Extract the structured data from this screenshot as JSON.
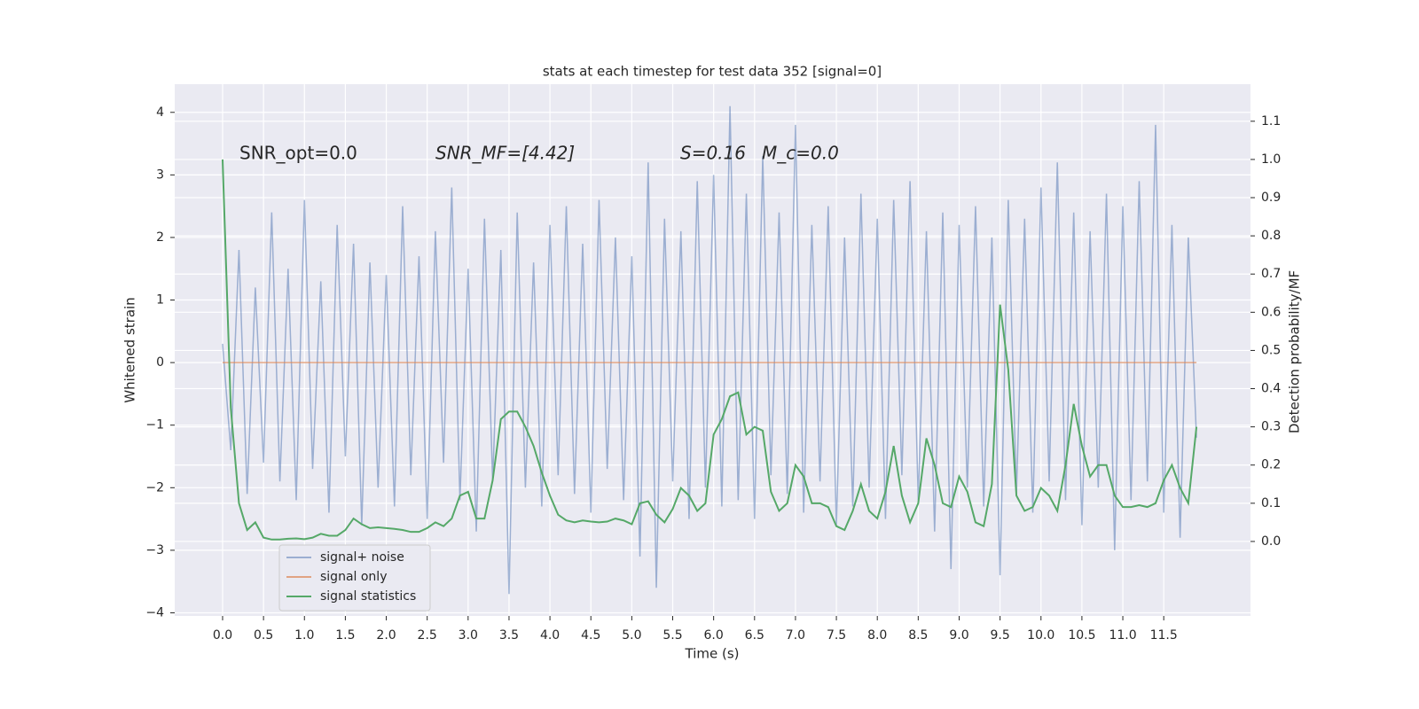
{
  "chart_data": {
    "type": "line",
    "title": "stats at each timestep for test data 352 [signal=0]",
    "x_label": "Time (s)",
    "y_label": "Whitened strain",
    "y2_label": "Detection probability/MF",
    "annotations": [
      "SNR_opt=0.0",
      "SNR_MF=[4.42]",
      "S=0.16",
      "M_c=0.0"
    ],
    "x": [
      0,
      0.1,
      0.2,
      0.3,
      0.4,
      0.5,
      0.6,
      0.7,
      0.8,
      0.9,
      1,
      1.1,
      1.2,
      1.3,
      1.4,
      1.5,
      1.6,
      1.7,
      1.8,
      1.9,
      2,
      2.1,
      2.2,
      2.3,
      2.4,
      2.5,
      2.6,
      2.7,
      2.8,
      2.9,
      3,
      3.1,
      3.2,
      3.3,
      3.4,
      3.5,
      3.6,
      3.7,
      3.8,
      3.9,
      4,
      4.1,
      4.2,
      4.3,
      4.4,
      4.5,
      4.6,
      4.7,
      4.8,
      4.9,
      5,
      5.1,
      5.2,
      5.3,
      5.4,
      5.5,
      5.6,
      5.7,
      5.8,
      5.9,
      6,
      6.1,
      6.2,
      6.3,
      6.4,
      6.5,
      6.6,
      6.7,
      6.8,
      6.9,
      7,
      7.1,
      7.2,
      7.3,
      7.4,
      7.5,
      7.6,
      7.7,
      7.8,
      7.9,
      8,
      8.1,
      8.2,
      8.3,
      8.4,
      8.5,
      8.6,
      8.7,
      8.8,
      8.9,
      9,
      9.1,
      9.2,
      9.3,
      9.4,
      9.5,
      9.6,
      9.7,
      9.8,
      9.9,
      10,
      10.1,
      10.2,
      10.3,
      10.4,
      10.5,
      10.6,
      10.7,
      10.8,
      10.9,
      11,
      11.1,
      11.2,
      11.3,
      11.4,
      11.5,
      11.6,
      11.7,
      11.8,
      11.9
    ],
    "series": [
      {
        "name": "signal+ noise",
        "color": "#4c72b0",
        "opacity": 0.5,
        "values": [
          0.3,
          -1.4,
          1.8,
          -2.1,
          1.2,
          -1.6,
          2.4,
          -1.9,
          1.5,
          -2.2,
          2.6,
          -1.7,
          1.3,
          -2.4,
          2.2,
          -1.5,
          1.9,
          -2.6,
          1.6,
          -2.0,
          1.4,
          -2.3,
          2.5,
          -1.8,
          1.7,
          -2.5,
          2.1,
          -1.6,
          2.8,
          -2.2,
          1.5,
          -2.7,
          2.3,
          -1.9,
          1.8,
          -3.7,
          2.4,
          -2.0,
          1.6,
          -2.3,
          2.2,
          -1.8,
          2.5,
          -2.1,
          1.9,
          -2.4,
          2.6,
          -1.7,
          2.0,
          -2.2,
          1.7,
          -3.1,
          3.2,
          -3.6,
          2.3,
          -1.9,
          2.1,
          -2.5,
          2.9,
          -2.0,
          3.0,
          -2.3,
          4.1,
          -2.2,
          2.7,
          -2.5,
          3.3,
          -1.8,
          2.4,
          -2.1,
          3.8,
          -2.4,
          2.2,
          -1.9,
          2.5,
          -2.6,
          2.0,
          -2.3,
          2.7,
          -2.0,
          2.3,
          -2.5,
          2.6,
          -1.8,
          2.9,
          -2.2,
          2.1,
          -2.7,
          2.4,
          -3.3,
          2.2,
          -2.0,
          2.5,
          -2.3,
          2.0,
          -3.4,
          2.6,
          -2.1,
          2.3,
          -2.4,
          2.8,
          -1.9,
          3.2,
          -2.2,
          2.4,
          -2.6,
          2.1,
          -2.0,
          2.7,
          -3.0,
          2.5,
          -2.2,
          2.9,
          -1.9,
          3.8,
          -2.4,
          2.2,
          -2.8,
          2.0,
          -1.2
        ]
      },
      {
        "name": "signal only",
        "color": "#dd8452",
        "opacity": 0.7,
        "values": [
          0,
          0,
          0,
          0,
          0,
          0,
          0,
          0,
          0,
          0,
          0,
          0,
          0,
          0,
          0,
          0,
          0,
          0,
          0,
          0,
          0,
          0,
          0,
          0,
          0,
          0,
          0,
          0,
          0,
          0,
          0,
          0,
          0,
          0,
          0,
          0,
          0,
          0,
          0,
          0,
          0,
          0,
          0,
          0,
          0,
          0,
          0,
          0,
          0,
          0,
          0,
          0,
          0,
          0,
          0,
          0,
          0,
          0,
          0,
          0,
          0,
          0,
          0,
          0,
          0,
          0,
          0,
          0,
          0,
          0,
          0,
          0,
          0,
          0,
          0,
          0,
          0,
          0,
          0,
          0,
          0,
          0,
          0,
          0,
          0,
          0,
          0,
          0,
          0,
          0,
          0,
          0,
          0,
          0,
          0,
          0,
          0,
          0,
          0,
          0,
          0,
          0,
          0,
          0,
          0,
          0,
          0,
          0,
          0,
          0,
          0,
          0,
          0,
          0,
          0,
          0,
          0,
          0,
          0,
          0
        ]
      },
      {
        "name": "signal statistics",
        "color": "#55a868",
        "opacity": 1,
        "axis": "y2",
        "values": [
          1.0,
          0.35,
          0.1,
          0.03,
          0.05,
          0.01,
          0.005,
          0.005,
          0.007,
          0.008,
          0.006,
          0.01,
          0.02,
          0.015,
          0.015,
          0.03,
          0.06,
          0.045,
          0.035,
          0.037,
          0.035,
          0.033,
          0.03,
          0.025,
          0.025,
          0.035,
          0.05,
          0.04,
          0.06,
          0.12,
          0.13,
          0.06,
          0.06,
          0.16,
          0.32,
          0.34,
          0.34,
          0.3,
          0.25,
          0.18,
          0.12,
          0.07,
          0.055,
          0.05,
          0.055,
          0.052,
          0.05,
          0.052,
          0.06,
          0.055,
          0.045,
          0.1,
          0.105,
          0.07,
          0.05,
          0.085,
          0.14,
          0.12,
          0.08,
          0.1,
          0.28,
          0.32,
          0.38,
          0.39,
          0.28,
          0.3,
          0.29,
          0.13,
          0.08,
          0.1,
          0.2,
          0.17,
          0.1,
          0.1,
          0.09,
          0.04,
          0.03,
          0.08,
          0.15,
          0.08,
          0.06,
          0.13,
          0.25,
          0.12,
          0.05,
          0.1,
          0.27,
          0.2,
          0.1,
          0.09,
          0.17,
          0.13,
          0.05,
          0.04,
          0.15,
          0.62,
          0.45,
          0.12,
          0.08,
          0.09,
          0.14,
          0.12,
          0.08,
          0.2,
          0.36,
          0.25,
          0.17,
          0.2,
          0.2,
          0.12,
          0.09,
          0.09,
          0.095,
          0.09,
          0.1,
          0.16,
          0.2,
          0.14,
          0.1,
          0.3
        ]
      }
    ],
    "xlim": [
      -0.585,
      12.56
    ],
    "xticks": [
      {
        "value": 0,
        "label": "0.0"
      },
      0.5,
      {
        "value": 1,
        "label": "1.0"
      },
      1.5,
      {
        "value": 2,
        "label": "2.0"
      },
      2.5,
      {
        "value": 3,
        "label": "3.0"
      },
      3.5,
      {
        "value": 4,
        "label": "4.0"
      },
      4.5,
      {
        "value": 5,
        "label": "5.0"
      },
      5.5,
      {
        "value": 6,
        "label": "6.0"
      },
      6.5,
      {
        "value": 7,
        "label": "7.0"
      },
      7.5,
      {
        "value": 8,
        "label": "8.0"
      },
      8.5,
      {
        "value": 9,
        "label": "9.0"
      },
      9.5,
      {
        "value": 10,
        "label": "10.0"
      },
      10.5,
      {
        "value": 11,
        "label": "11.0"
      },
      11.5
    ],
    "ylim": [
      -4.05,
      4.45
    ],
    "yticks": [
      {
        "value": -4,
        "label": "−4"
      },
      {
        "value": -3,
        "label": "−3"
      },
      {
        "value": -2,
        "label": "−2"
      },
      {
        "value": -1,
        "label": "−1"
      },
      0,
      1,
      2,
      3,
      4
    ],
    "y2lim": [
      -0.195,
      1.197
    ],
    "y2ticks": [
      {
        "value": 0,
        "label": "0.0"
      },
      0.1,
      0.2,
      0.3,
      0.4,
      0.5,
      0.6,
      0.7,
      0.8,
      0.9,
      {
        "value": 1,
        "label": "1.0"
      },
      1.1
    ],
    "grid": true,
    "legend": "lower left"
  }
}
